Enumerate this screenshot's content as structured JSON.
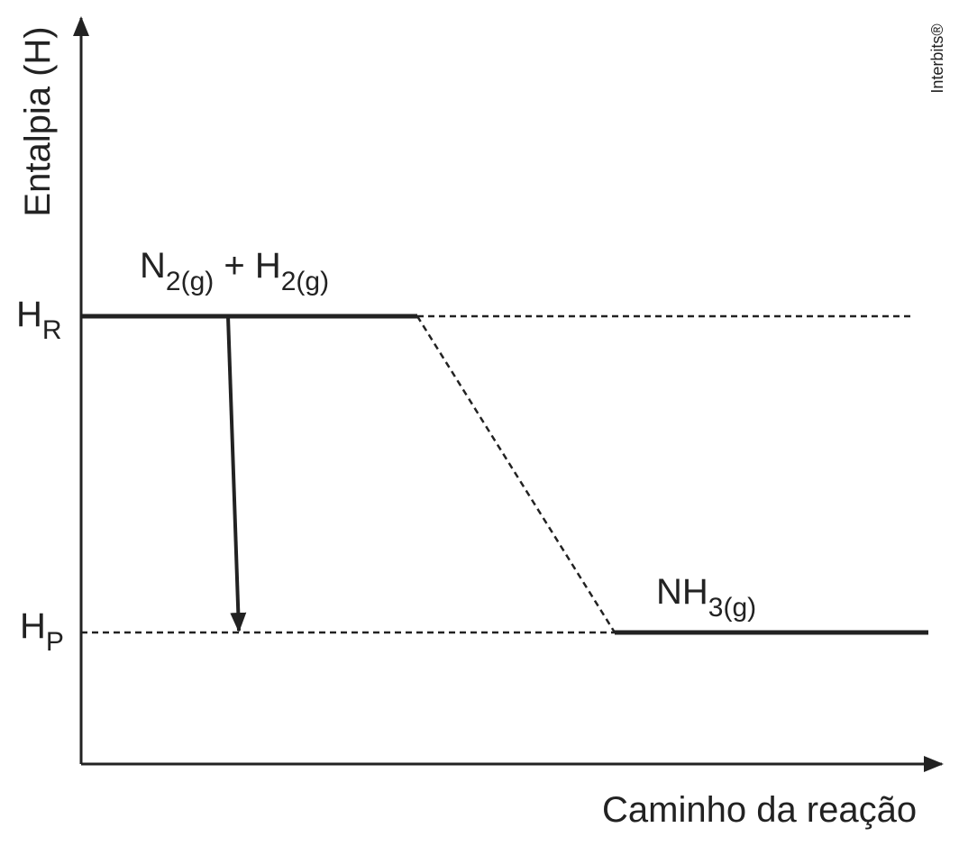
{
  "y_axis_label": "Entalpia (H)",
  "x_axis_label": "Caminho da reação",
  "credit": "Interbits®",
  "levels": [
    {
      "parts": [
        "H",
        "R"
      ]
    },
    {
      "parts": [
        "H",
        "P"
      ]
    }
  ],
  "species": [
    {
      "parts": [
        "N",
        "2(g)",
        " + H",
        "2(g)"
      ]
    },
    {
      "parts": [
        "NH",
        "3(g)"
      ]
    }
  ]
}
